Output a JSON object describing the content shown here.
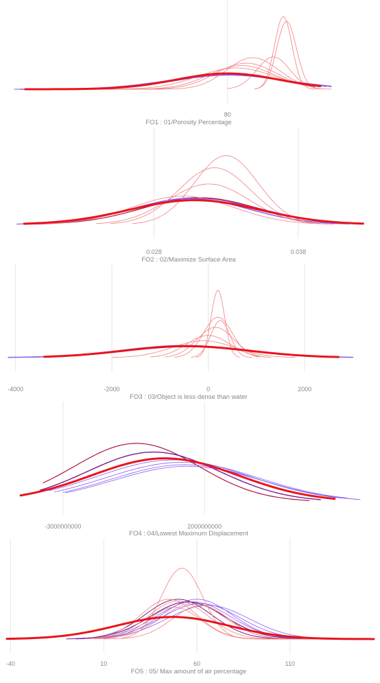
{
  "colors": {
    "background": "#ffffff",
    "gridline": "#e6e6e6",
    "text": "#888888",
    "highlight": "#e8141c",
    "light_red": "#f08080",
    "purple": "#8a5cf0",
    "dark_red": "#b0123a",
    "dark_purple": "#7a1c8c"
  },
  "chart_data": [
    {
      "type": "line",
      "subtype": "density",
      "title": "FO1 : 01/Porosity Percentage",
      "ticks": [
        {
          "value": 80,
          "label": "80"
        }
      ],
      "x_range": [
        -125,
        195
      ],
      "curves": [
        {
          "mean": 80,
          "sd": 55,
          "peak": 0.18,
          "span": [
            -115,
            175
          ],
          "color": "purple",
          "width": 1
        },
        {
          "mean": 79,
          "sd": 52,
          "peak": 0.18,
          "span": [
            -115,
            175
          ],
          "color": "purple",
          "width": 1
        },
        {
          "mean": 82,
          "sd": 50,
          "peak": 0.18,
          "span": [
            -110,
            170
          ],
          "color": "purple",
          "width": 1.5
        },
        {
          "mean": 88,
          "sd": 35,
          "peak": 0.27,
          "span": [
            -60,
            160
          ],
          "color": "light_red",
          "width": 0.8
        },
        {
          "mean": 93,
          "sd": 30,
          "peak": 0.3,
          "span": [
            -40,
            160
          ],
          "color": "light_red",
          "width": 0.8
        },
        {
          "mean": 97,
          "sd": 28,
          "peak": 0.33,
          "span": [
            -30,
            150
          ],
          "color": "light_red",
          "width": 0.8
        },
        {
          "mean": 103,
          "sd": 24,
          "peak": 0.4,
          "span": [
            -20,
            160
          ],
          "color": "light_red",
          "width": 0.8
        },
        {
          "mean": 122,
          "sd": 15,
          "peak": 0.41,
          "span": [
            80,
            175
          ],
          "color": "light_red",
          "width": 0.8
        },
        {
          "mean": 131,
          "sd": 8,
          "peak": 0.92,
          "span": [
            105,
            160
          ],
          "color": "light_red",
          "width": 0.8
        },
        {
          "mean": 134,
          "sd": 9,
          "peak": 0.86,
          "span": [
            105,
            165
          ],
          "color": "light_red",
          "width": 0.8
        },
        {
          "mean": 80,
          "sd": 47,
          "peak": 0.2,
          "span": [
            -105,
            165
          ],
          "color": "highlight",
          "width": 3
        }
      ]
    },
    {
      "type": "line",
      "subtype": "density",
      "title": "FO2 : 02/Maximize Surface Area",
      "ticks": [
        {
          "value": 0.028,
          "label": "0.028"
        },
        {
          "value": 0.038,
          "label": "0.038"
        }
      ],
      "x_range": [
        0.0178,
        0.043
      ],
      "curves": [
        {
          "mean": 0.0308,
          "sd": 0.0042,
          "peak": 0.33,
          "span": [
            0.0185,
            0.042
          ],
          "color": "purple",
          "width": 1
        },
        {
          "mean": 0.031,
          "sd": 0.0044,
          "peak": 0.32,
          "span": [
            0.0185,
            0.0425
          ],
          "color": "purple",
          "width": 1
        },
        {
          "mean": 0.0312,
          "sd": 0.004,
          "peak": 0.33,
          "span": [
            0.019,
            0.042
          ],
          "color": "dark_red",
          "width": 1.2
        },
        {
          "mean": 0.0305,
          "sd": 0.004,
          "peak": 0.32,
          "span": [
            0.019,
            0.0415
          ],
          "color": "purple",
          "width": 1.5
        },
        {
          "mean": 0.0318,
          "sd": 0.0028,
          "peak": 0.5,
          "span": [
            0.024,
            0.04
          ],
          "color": "light_red",
          "width": 0.8
        },
        {
          "mean": 0.0322,
          "sd": 0.0025,
          "peak": 0.7,
          "span": [
            0.025,
            0.0395
          ],
          "color": "light_red",
          "width": 0.8
        },
        {
          "mean": 0.033,
          "sd": 0.0022,
          "peak": 0.85,
          "span": [
            0.0265,
            0.0395
          ],
          "color": "light_red",
          "width": 0.8
        },
        {
          "mean": 0.03,
          "sd": 0.0035,
          "peak": 0.35,
          "span": [
            0.0205,
            0.0405
          ],
          "color": "light_red",
          "width": 0.8
        },
        {
          "mean": 0.0308,
          "sd": 0.0045,
          "peak": 0.3,
          "span": [
            0.019,
            0.0425
          ],
          "color": "highlight",
          "width": 3
        }
      ]
    },
    {
      "type": "line",
      "subtype": "density",
      "title": "FO3 : 03/Object is less dense than water",
      "ticks": [
        {
          "value": -4000,
          "label": "-4000"
        },
        {
          "value": -2000,
          "label": "-2000"
        },
        {
          "value": 0,
          "label": "0"
        },
        {
          "value": 2000,
          "label": "2000"
        }
      ],
      "x_range": [
        -4150,
        3250
      ],
      "curves": [
        {
          "mean": -500,
          "sd": 1300,
          "peak": 0.18,
          "span": [
            -4150,
            3000
          ],
          "color": "purple",
          "width": 1.5
        },
        {
          "mean": -400,
          "sd": 1250,
          "peak": 0.17,
          "span": [
            -3800,
            2900
          ],
          "color": "purple",
          "width": 1
        },
        {
          "mean": 0,
          "sd": 450,
          "peak": 0.33,
          "span": [
            -1200,
            1300
          ],
          "color": "light_red",
          "width": 0.8
        },
        {
          "mean": 150,
          "sd": 380,
          "peak": 0.45,
          "span": [
            -900,
            1200
          ],
          "color": "light_red",
          "width": 0.8
        },
        {
          "mean": 200,
          "sd": 300,
          "peak": 0.6,
          "span": [
            -700,
            1050
          ],
          "color": "light_red",
          "width": 0.8
        },
        {
          "mean": 200,
          "sd": 140,
          "peak": 1.0,
          "span": [
            -250,
            650
          ],
          "color": "light_red",
          "width": 0.8
        },
        {
          "mean": 250,
          "sd": 200,
          "peak": 0.55,
          "span": [
            -350,
            900
          ],
          "color": "light_red",
          "width": 0.8
        },
        {
          "mean": -100,
          "sd": 650,
          "peak": 0.25,
          "span": [
            -2000,
            1800
          ],
          "color": "light_red",
          "width": 0.8
        },
        {
          "mean": -450,
          "sd": 1300,
          "peak": 0.17,
          "span": [
            -3400,
            2700
          ],
          "color": "highlight",
          "width": 3
        }
      ]
    },
    {
      "type": "line",
      "subtype": "density",
      "title": "FO4 : 04/Lowest Maximum Displacement",
      "ticks": [
        {
          "value": -3000000000,
          "label": "-3000000000"
        },
        {
          "value": 2000000000,
          "label": "2000000000"
        }
      ],
      "x_range": [
        -4500000000,
        7500000000
      ],
      "curves": [
        {
          "mean": -400000000,
          "sd": 2200000000,
          "peak": 0.74,
          "span": [
            -3700000000,
            5700000000
          ],
          "color": "dark_red",
          "width": 1.2
        },
        {
          "mean": 200000000,
          "sd": 2350000000,
          "peak": 0.63,
          "span": [
            -3800000000,
            6100000000
          ],
          "color": "dark_purple",
          "width": 1.4
        },
        {
          "mean": 900000000,
          "sd": 2700000000,
          "peak": 0.53,
          "span": [
            -3500000000,
            6800000000
          ],
          "color": "purple",
          "width": 0.8
        },
        {
          "mean": 1200000000,
          "sd": 2700000000,
          "peak": 0.5,
          "span": [
            -3300000000,
            7000000000
          ],
          "color": "purple",
          "width": 0.8
        },
        {
          "mean": 1300000000,
          "sd": 2600000000,
          "peak": 0.47,
          "span": [
            -3000000000,
            7400000000
          ],
          "color": "purple",
          "width": 0.8
        },
        {
          "mean": 1400000000,
          "sd": 2600000000,
          "peak": 0.45,
          "span": [
            -2900000000,
            7500000000
          ],
          "color": "purple",
          "width": 0.8
        },
        {
          "mean": 600000000,
          "sd": 2600000000,
          "peak": 0.55,
          "span": [
            -4500000000,
            6600000000
          ],
          "color": "highlight",
          "width": 3
        }
      ]
    },
    {
      "type": "line",
      "subtype": "density",
      "title": "FO5 : 05/ Max amount of air percentage",
      "ticks": [
        {
          "value": -40,
          "label": "-40"
        },
        {
          "value": 10,
          "label": "10"
        },
        {
          "value": 60,
          "label": "60"
        },
        {
          "value": 110,
          "label": "110"
        }
      ],
      "x_range": [
        -42,
        155
      ],
      "curves": [
        {
          "mean": 58,
          "sd": 20,
          "peak": 0.42,
          "span": [
            -5,
            135
          ],
          "color": "purple",
          "width": 0.8
        },
        {
          "mean": 62,
          "sd": 21,
          "peak": 0.4,
          "span": [
            -5,
            140
          ],
          "color": "purple",
          "width": 0.8
        },
        {
          "mean": 66,
          "sd": 22,
          "peak": 0.38,
          "span": [
            0,
            145
          ],
          "color": "purple",
          "width": 0.8
        },
        {
          "mean": 60,
          "sd": 19,
          "peak": 0.45,
          "span": [
            -5,
            135
          ],
          "color": "purple",
          "width": 0.8
        },
        {
          "mean": 55,
          "sd": 20,
          "peak": 0.42,
          "span": [
            -5,
            135
          ],
          "color": "dark_purple",
          "width": 1.2
        },
        {
          "mean": 50,
          "sd": 18,
          "peak": 0.45,
          "span": [
            -10,
            125
          ],
          "color": "dark_purple",
          "width": 1
        },
        {
          "mean": 52,
          "sd": 11,
          "peak": 0.8,
          "span": [
            20,
            100
          ],
          "color": "light_red",
          "width": 0.8
        },
        {
          "mean": 45,
          "sd": 15,
          "peak": 0.45,
          "span": [
            0,
            110
          ],
          "color": "light_red",
          "width": 0.8
        },
        {
          "mean": 50,
          "sd": 16,
          "peak": 0.43,
          "span": [
            0,
            115
          ],
          "color": "light_red",
          "width": 0.8
        },
        {
          "mean": 58,
          "sd": 17,
          "peak": 0.4,
          "span": [
            5,
            125
          ],
          "color": "light_red",
          "width": 0.8
        },
        {
          "mean": 62,
          "sd": 15,
          "peak": 0.38,
          "span": [
            10,
            125
          ],
          "color": "light_red",
          "width": 0.8
        },
        {
          "mean": 48,
          "sd": 14,
          "peak": 0.36,
          "span": [
            5,
            115
          ],
          "color": "light_red",
          "width": 0.8
        },
        {
          "mean": 47,
          "sd": 30,
          "peak": 0.25,
          "span": [
            -42,
            155
          ],
          "color": "highlight",
          "width": 3
        }
      ]
    }
  ]
}
